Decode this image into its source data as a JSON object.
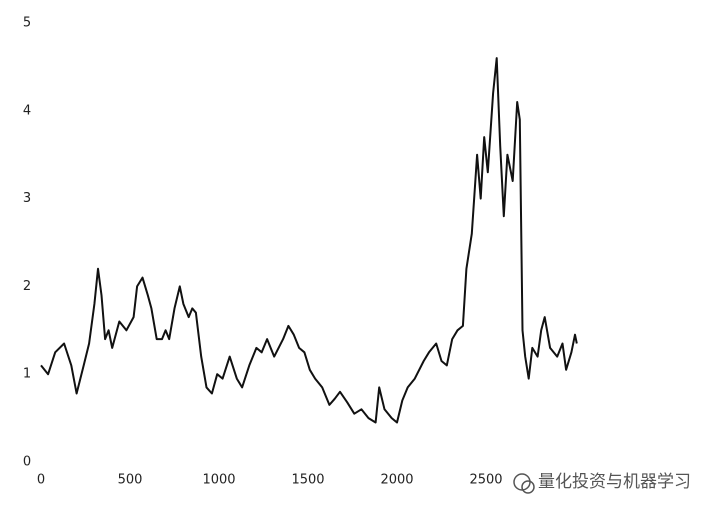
{
  "chart_data": {
    "type": "line",
    "color": "#111111",
    "x": [
      0,
      40,
      80,
      130,
      170,
      200,
      240,
      270,
      300,
      320,
      340,
      360,
      380,
      400,
      440,
      480,
      520,
      540,
      570,
      600,
      620,
      650,
      680,
      700,
      720,
      750,
      780,
      800,
      830,
      850,
      870,
      900,
      930,
      960,
      990,
      1020,
      1060,
      1100,
      1130,
      1170,
      1210,
      1240,
      1270,
      1310,
      1360,
      1390,
      1420,
      1450,
      1480,
      1510,
      1540,
      1580,
      1620,
      1650,
      1680,
      1720,
      1760,
      1800,
      1840,
      1880,
      1900,
      1930,
      1970,
      2000,
      2030,
      2060,
      2100,
      2150,
      2180,
      2220,
      2250,
      2280,
      2310,
      2340,
      2370,
      2390,
      2420,
      2450,
      2470,
      2490,
      2510,
      2540,
      2560,
      2580,
      2600,
      2620,
      2650,
      2675,
      2690,
      2705,
      2720,
      2740,
      2760,
      2790,
      2810,
      2830,
      2860,
      2900,
      2930,
      2950,
      2980,
      3000,
      3010
    ],
    "values": [
      1.1,
      1.0,
      1.25,
      1.35,
      1.1,
      0.78,
      1.1,
      1.35,
      1.8,
      2.2,
      1.9,
      1.4,
      1.5,
      1.3,
      1.6,
      1.5,
      1.65,
      2.0,
      2.1,
      1.9,
      1.75,
      1.4,
      1.4,
      1.5,
      1.4,
      1.75,
      2.0,
      1.8,
      1.65,
      1.75,
      1.7,
      1.2,
      0.85,
      0.78,
      1.0,
      0.95,
      1.2,
      0.95,
      0.85,
      1.1,
      1.3,
      1.25,
      1.4,
      1.2,
      1.4,
      1.55,
      1.45,
      1.3,
      1.25,
      1.05,
      0.95,
      0.85,
      0.65,
      0.72,
      0.8,
      0.68,
      0.55,
      0.6,
      0.5,
      0.45,
      0.85,
      0.6,
      0.5,
      0.45,
      0.7,
      0.85,
      0.95,
      1.15,
      1.25,
      1.35,
      1.15,
      1.1,
      1.4,
      1.5,
      1.55,
      2.2,
      2.6,
      3.5,
      3.0,
      3.7,
      3.3,
      4.2,
      4.6,
      3.6,
      2.8,
      3.5,
      3.2,
      4.1,
      3.9,
      1.5,
      1.2,
      0.95,
      1.3,
      1.2,
      1.5,
      1.65,
      1.3,
      1.2,
      1.35,
      1.05,
      1.25,
      1.45,
      1.35
    ],
    "xlim": [
      0,
      3700
    ],
    "ylim": [
      0,
      5
    ],
    "xticks": [
      0,
      500,
      1000,
      1500,
      2000,
      2500
    ],
    "yticks": [
      0,
      1,
      2,
      3,
      4,
      5
    ],
    "grid": false,
    "watermark": "量化投资与机器学习"
  }
}
